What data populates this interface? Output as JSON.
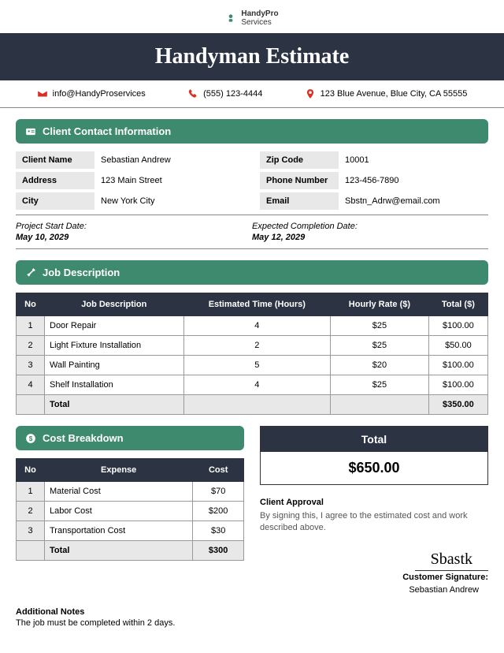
{
  "logo": {
    "name": "HandyPro",
    "sub": "Services"
  },
  "title": "Handyman Estimate",
  "contact": {
    "email": "info@HandyProservices",
    "phone": "(555) 123-4444",
    "address": "123 Blue Avenue, Blue City, CA 55555"
  },
  "sections": {
    "client": "Client Contact Information",
    "job": "Job Description",
    "cost": "Cost Breakdown"
  },
  "client": {
    "name_label": "Client Name",
    "name": "Sebastian Andrew",
    "zip_label": "Zip Code",
    "zip": "10001",
    "address_label": "Address",
    "address": "123 Main Street",
    "phone_label": "Phone Number",
    "phone": "123-456-7890",
    "city_label": "City",
    "city": "New York City",
    "email_label": "Email",
    "email": "Sbstn_Adrw@email.com"
  },
  "dates": {
    "start_label": "Project Start Date:",
    "start": "May 10, 2029",
    "end_label": "Expected Completion Date:",
    "end": "May 12, 2029"
  },
  "job_headers": {
    "no": "No",
    "desc": "Job Description",
    "time": "Estimated Time (Hours)",
    "rate": "Hourly Rate ($)",
    "total": "Total ($)"
  },
  "jobs": [
    {
      "no": "1",
      "desc": "Door Repair",
      "time": "4",
      "rate": "$25",
      "total": "$100.00"
    },
    {
      "no": "2",
      "desc": "Light Fixture Installation",
      "time": "2",
      "rate": "$25",
      "total": "$50.00"
    },
    {
      "no": "3",
      "desc": "Wall Painting",
      "time": "5",
      "rate": "$20",
      "total": "$100.00"
    },
    {
      "no": "4",
      "desc": "Shelf Installation",
      "time": "4",
      "rate": "$25",
      "total": "$100.00"
    }
  ],
  "job_total_label": "Total",
  "job_total": "$350.00",
  "cost_headers": {
    "no": "No",
    "expense": "Expense",
    "cost": "Cost"
  },
  "costs": [
    {
      "no": "1",
      "expense": "Material Cost",
      "cost": "$70"
    },
    {
      "no": "2",
      "expense": "Labor Cost",
      "cost": "$200"
    },
    {
      "no": "3",
      "expense": "Transportation Cost",
      "cost": "$30"
    }
  ],
  "cost_total_label": "Total",
  "cost_total": "$300",
  "grand_total_label": "Total",
  "grand_total": "$650.00",
  "approval": {
    "title": "Client Approval",
    "text": "By signing this, I agree to the estimated cost and work described above."
  },
  "signature": {
    "label": "Customer Signature:",
    "scribble": "Sbastk",
    "name": "Sebastian Andrew"
  },
  "notes": {
    "title": "Additional Notes",
    "text": "The job must be completed within 2 days."
  },
  "colors": {
    "band": "#2c3444",
    "green": "#3d8a6f",
    "red": "#d93025",
    "gray": "#e8e8e8"
  }
}
